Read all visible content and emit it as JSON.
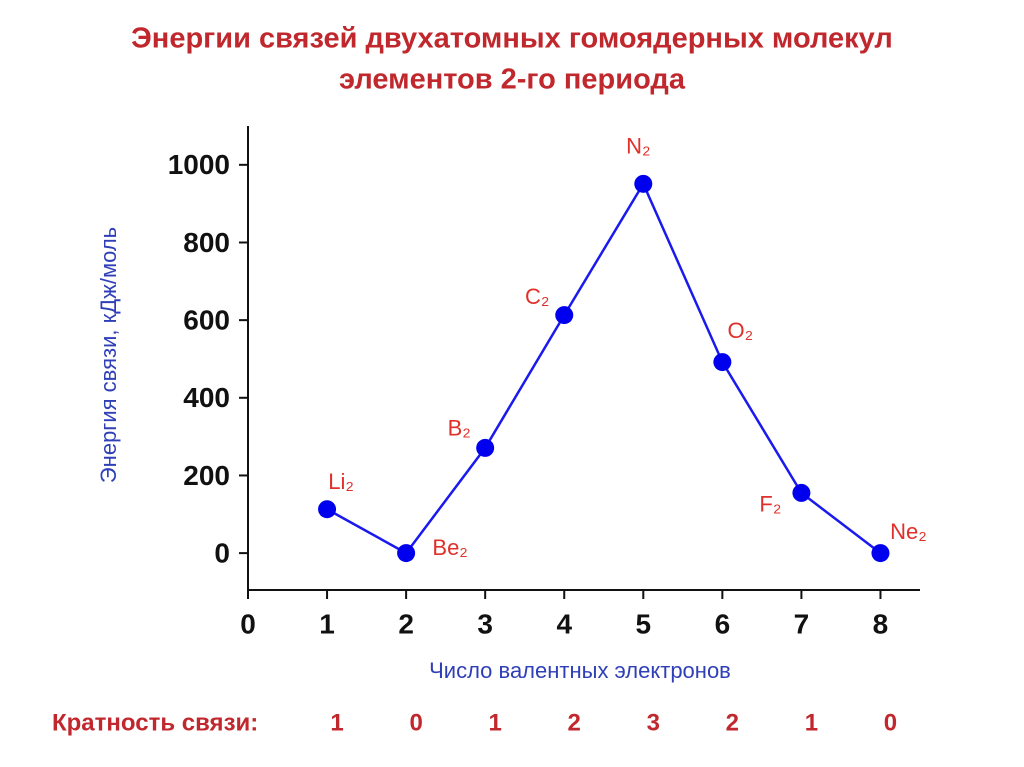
{
  "chart_data": {
    "type": "line",
    "title": "Энергии связей двухатомных гомоядерных молекул",
    "subtitle": "элементов 2-го периода",
    "x_label": "Число валентных электронов",
    "y_label": "Энергия связи, кДж/моль",
    "x": [
      1,
      2,
      3,
      4,
      5,
      6,
      7,
      8
    ],
    "series": [
      {
        "name": null,
        "color": "#1a1af0",
        "marker_color": "#0000ee",
        "values": [
          113,
          0,
          271,
          613,
          951,
          492,
          155,
          0
        ]
      }
    ],
    "point_labels": [
      "Li₂",
      "Be₂",
      "B₂",
      "C₂",
      "N₂",
      "O₂",
      "F₂",
      "Ne₂"
    ],
    "xlim": [
      0,
      8.5
    ],
    "ylim": [
      -95,
      1100
    ],
    "xticks": [
      0,
      1,
      2,
      3,
      4,
      5,
      6,
      7,
      8
    ],
    "yticks": [
      0,
      200,
      400,
      600,
      800,
      1000
    ],
    "bond_order_label": "Кратность связи:",
    "bond_orders": [
      1,
      0,
      1,
      2,
      3,
      2,
      1,
      0
    ]
  }
}
